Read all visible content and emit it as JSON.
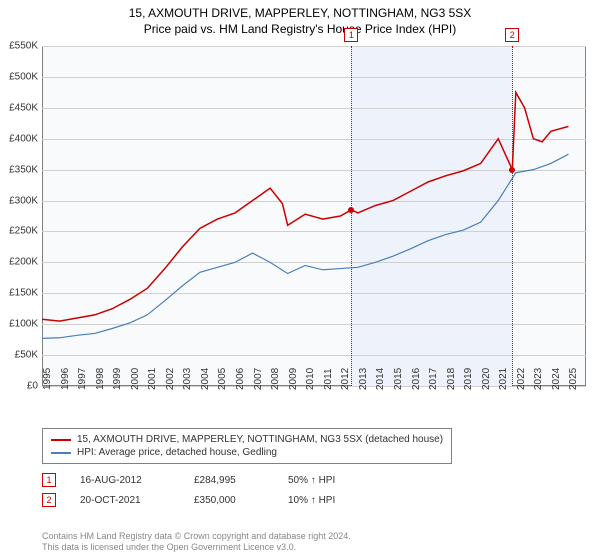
{
  "title_main": "15, AXMOUTH DRIVE, MAPPERLEY, NOTTINGHAM, NG3 5SX",
  "title_sub": "Price paid vs. HM Land Registry's House Price Index (HPI)",
  "chart": {
    "type": "line",
    "background_color": "#f9fafb",
    "grid_color": "#d0d0d0",
    "border_color": "#808080",
    "shaded_band": {
      "x_start": 2012.63,
      "x_end": 2021.8,
      "color": "#eef2fa"
    },
    "x_axis": {
      "min": 1995,
      "max": 2026,
      "ticks": [
        1995,
        1996,
        1997,
        1998,
        1999,
        2000,
        2001,
        2002,
        2003,
        2004,
        2005,
        2006,
        2007,
        2008,
        2009,
        2010,
        2011,
        2012,
        2013,
        2014,
        2015,
        2016,
        2017,
        2018,
        2019,
        2020,
        2021,
        2022,
        2023,
        2024,
        2025
      ],
      "label_fontsize": 10,
      "label_rotation": -90
    },
    "y_axis": {
      "min": 0,
      "max": 550000,
      "tick_step": 50000,
      "tick_labels": [
        "£0",
        "£50K",
        "£100K",
        "£150K",
        "£200K",
        "£250K",
        "£300K",
        "£350K",
        "£400K",
        "£450K",
        "£500K",
        "£550K"
      ],
      "label_fontsize": 10
    },
    "series": [
      {
        "name": "property",
        "label": "15, AXMOUTH DRIVE, MAPPERLEY, NOTTINGHAM, NG3 5SX (detached house)",
        "color": "#cc0000",
        "line_width": 1.5,
        "data": [
          [
            1995,
            108000
          ],
          [
            1996,
            105000
          ],
          [
            1997,
            110000
          ],
          [
            1998,
            115000
          ],
          [
            1999,
            125000
          ],
          [
            2000,
            140000
          ],
          [
            2001,
            158000
          ],
          [
            2002,
            190000
          ],
          [
            2003,
            225000
          ],
          [
            2004,
            255000
          ],
          [
            2005,
            270000
          ],
          [
            2006,
            280000
          ],
          [
            2007,
            300000
          ],
          [
            2008,
            320000
          ],
          [
            2008.7,
            295000
          ],
          [
            2009,
            260000
          ],
          [
            2010,
            278000
          ],
          [
            2011,
            270000
          ],
          [
            2012,
            275000
          ],
          [
            2012.63,
            284995
          ],
          [
            2013,
            280000
          ],
          [
            2014,
            292000
          ],
          [
            2015,
            300000
          ],
          [
            2016,
            315000
          ],
          [
            2017,
            330000
          ],
          [
            2018,
            340000
          ],
          [
            2019,
            348000
          ],
          [
            2020,
            360000
          ],
          [
            2021,
            400000
          ],
          [
            2021.8,
            350000
          ],
          [
            2022,
            475000
          ],
          [
            2022.5,
            450000
          ],
          [
            2023,
            400000
          ],
          [
            2023.5,
            395000
          ],
          [
            2024,
            412000
          ],
          [
            2025,
            420000
          ]
        ]
      },
      {
        "name": "hpi",
        "label": "HPI: Average price, detached house, Gedling",
        "color": "#4a7ebb",
        "line_width": 1.2,
        "data": [
          [
            1995,
            77000
          ],
          [
            1996,
            78000
          ],
          [
            1997,
            82000
          ],
          [
            1998,
            85000
          ],
          [
            1999,
            93000
          ],
          [
            2000,
            102000
          ],
          [
            2001,
            115000
          ],
          [
            2002,
            138000
          ],
          [
            2003,
            162000
          ],
          [
            2004,
            184000
          ],
          [
            2005,
            192000
          ],
          [
            2006,
            200000
          ],
          [
            2007,
            215000
          ],
          [
            2008,
            200000
          ],
          [
            2009,
            182000
          ],
          [
            2010,
            195000
          ],
          [
            2011,
            188000
          ],
          [
            2012,
            190000
          ],
          [
            2013,
            192000
          ],
          [
            2014,
            200000
          ],
          [
            2015,
            210000
          ],
          [
            2016,
            222000
          ],
          [
            2017,
            235000
          ],
          [
            2018,
            245000
          ],
          [
            2019,
            252000
          ],
          [
            2020,
            265000
          ],
          [
            2021,
            300000
          ],
          [
            2022,
            345000
          ],
          [
            2023,
            350000
          ],
          [
            2024,
            360000
          ],
          [
            2025,
            375000
          ]
        ]
      }
    ],
    "markers": [
      {
        "num": "1",
        "x": 2012.63,
        "sale_y": 284995
      },
      {
        "num": "2",
        "x": 2021.8,
        "sale_y": 350000
      }
    ]
  },
  "legend": {
    "prop_label": "15, AXMOUTH DRIVE, MAPPERLEY, NOTTINGHAM, NG3 5SX (detached house)",
    "hpi_label": "HPI: Average price, detached house, Gedling"
  },
  "sales": [
    {
      "num": "1",
      "date": "16-AUG-2012",
      "price": "£284,995",
      "pct": "50% ↑ HPI"
    },
    {
      "num": "2",
      "date": "20-OCT-2021",
      "price": "£350,000",
      "pct": "10% ↑ HPI"
    }
  ],
  "footer_line1": "Contains HM Land Registry data © Crown copyright and database right 2024.",
  "footer_line2": "This data is licensed under the Open Government Licence v3.0."
}
